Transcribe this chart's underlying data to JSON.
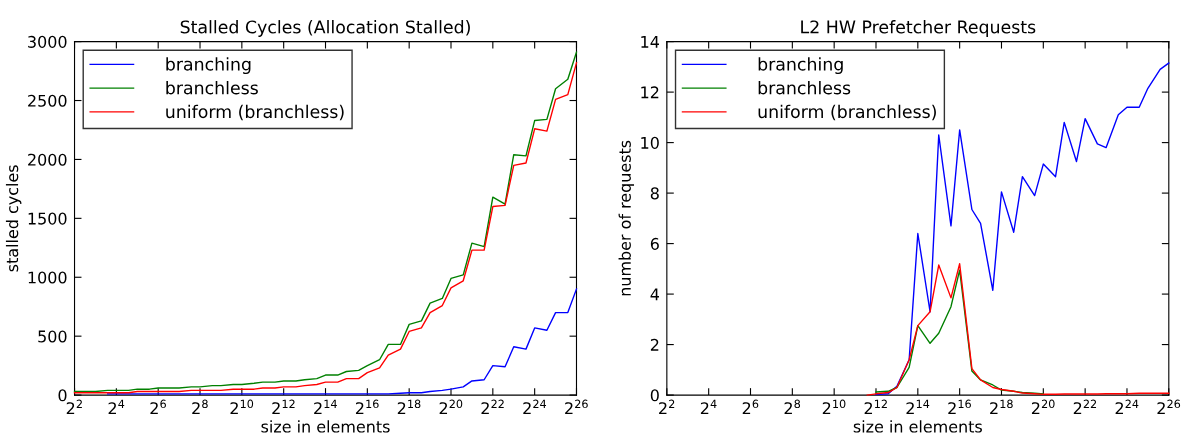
{
  "chart_data": [
    {
      "type": "line",
      "title": "Stalled Cycles (Allocation Stalled)",
      "xlabel": "size in elements",
      "ylabel": "stalled cycles",
      "log": "x",
      "grid": false,
      "legend": "top left",
      "x": [
        4,
        6,
        8,
        12,
        16,
        24,
        32,
        48,
        64,
        96,
        128,
        192,
        256,
        384,
        512,
        768,
        1024,
        1536,
        2048,
        3072,
        4096,
        6144,
        8192,
        12288,
        16384,
        24576,
        32768,
        49152,
        65536,
        98304,
        131072,
        196608,
        262144,
        393216,
        524288,
        786432,
        1048576,
        1572864,
        2097152,
        3145728,
        4194304,
        6291456,
        8388608,
        12582912,
        16777216,
        25165824,
        33554432,
        50331648,
        67108864
      ],
      "xlim": [
        4,
        67108864
      ],
      "xticks": [
        {
          "value": 4,
          "label": "2$^{2}$"
        },
        {
          "value": 16,
          "label": "2$^{4}$"
        },
        {
          "value": 64,
          "label": "2$^{6}$"
        },
        {
          "value": 256,
          "label": "2$^{8}$"
        },
        {
          "value": 1024,
          "label": "2$^{10}$"
        },
        {
          "value": 4096,
          "label": "2$^{12}$"
        },
        {
          "value": 16384,
          "label": "2$^{14}$"
        },
        {
          "value": 65536,
          "label": "2$^{16}$"
        },
        {
          "value": 262144,
          "label": "2$^{18}$"
        },
        {
          "value": 1048576,
          "label": "2$^{20}$"
        },
        {
          "value": 4194304,
          "label": "2$^{22}$"
        },
        {
          "value": 16777216,
          "label": "2$^{24}$"
        },
        {
          "value": 67108864,
          "label": "2$^{26}$"
        }
      ],
      "ylim": [
        0,
        3000
      ],
      "yticks": [
        0,
        500,
        1000,
        1500,
        2000,
        2500,
        3000
      ],
      "series": [
        {
          "name": "branching",
          "color": "#0000ff",
          "values": [
            null,
            null,
            null,
            10,
            10,
            10,
            10,
            10,
            10,
            10,
            10,
            10,
            10,
            10,
            10,
            10,
            10,
            10,
            10,
            10,
            10,
            10,
            10,
            10,
            10,
            10,
            10,
            10,
            10,
            10,
            10,
            15,
            20,
            20,
            30,
            40,
            50,
            70,
            120,
            130,
            250,
            240,
            410,
            390,
            570,
            550,
            700,
            700,
            900
          ]
        },
        {
          "name": "branchless",
          "color": "#008000",
          "values": [
            30,
            30,
            30,
            40,
            40,
            40,
            50,
            50,
            60,
            60,
            60,
            70,
            70,
            80,
            80,
            90,
            90,
            100,
            110,
            110,
            120,
            120,
            130,
            140,
            170,
            170,
            200,
            210,
            250,
            300,
            430,
            430,
            600,
            630,
            780,
            820,
            990,
            1020,
            1290,
            1260,
            1680,
            1620,
            2040,
            2030,
            2330,
            2340,
            2600,
            2680,
            2910
          ]
        },
        {
          "name": "uniform (branchless)",
          "color": "#ff0000",
          "values": [
            20,
            20,
            20,
            20,
            20,
            20,
            30,
            30,
            30,
            30,
            30,
            40,
            40,
            40,
            40,
            50,
            50,
            50,
            60,
            60,
            70,
            70,
            80,
            90,
            110,
            110,
            140,
            140,
            190,
            230,
            340,
            390,
            540,
            570,
            700,
            760,
            910,
            970,
            1230,
            1230,
            1600,
            1610,
            1950,
            1970,
            2260,
            2240,
            2510,
            2550,
            2820
          ]
        }
      ]
    },
    {
      "type": "line",
      "title": "L2 HW Prefetcher Requests",
      "xlabel": "size in elements",
      "ylabel": "number of requests",
      "log": "x",
      "grid": false,
      "legend": "top left",
      "x": [
        3072,
        4096,
        6144,
        8192,
        12288,
        16384,
        24576,
        32768,
        49152,
        65536,
        98304,
        131072,
        196608,
        262144,
        393216,
        524288,
        786432,
        1048576,
        1572864,
        2097152,
        3145728,
        4194304,
        6291456,
        8388608,
        12582912,
        16777216,
        25165824,
        33554432,
        50331648,
        67108864
      ],
      "xlim": [
        4,
        67108864
      ],
      "xticks": [
        {
          "value": 4,
          "label": "2$^{2}$"
        },
        {
          "value": 16,
          "label": "2$^{4}$"
        },
        {
          "value": 64,
          "label": "2$^{6}$"
        },
        {
          "value": 256,
          "label": "2$^{8}$"
        },
        {
          "value": 1024,
          "label": "2$^{10}$"
        },
        {
          "value": 4096,
          "label": "2$^{12}$"
        },
        {
          "value": 16384,
          "label": "2$^{14}$"
        },
        {
          "value": 65536,
          "label": "2$^{16}$"
        },
        {
          "value": 262144,
          "label": "2$^{18}$"
        },
        {
          "value": 1048576,
          "label": "2$^{20}$"
        },
        {
          "value": 4194304,
          "label": "2$^{22}$"
        },
        {
          "value": 16777216,
          "label": "2$^{24}$"
        },
        {
          "value": 67108864,
          "label": "2$^{26}$"
        }
      ],
      "ylim": [
        0,
        14
      ],
      "yticks": [
        0,
        2,
        4,
        6,
        8,
        10,
        12,
        14
      ],
      "series": [
        {
          "name": "branching",
          "color": "#0000ff",
          "values": [
            null,
            0.02,
            0.05,
            0.35,
            1.4,
            6.4,
            3.3,
            10.3,
            6.7,
            10.5,
            7.35,
            6.8,
            4.15,
            8.05,
            6.45,
            8.65,
            7.9,
            9.15,
            8.65,
            10.8,
            9.25,
            10.95,
            9.95,
            9.8,
            11.1,
            11.4,
            11.4,
            12.15,
            12.9,
            13.15
          ]
        },
        {
          "name": "branchless",
          "color": "#008000",
          "values": [
            null,
            0.12,
            0.15,
            0.3,
            1.1,
            2.75,
            2.05,
            2.45,
            3.5,
            4.95,
            0.95,
            0.6,
            0.4,
            0.2,
            0.15,
            0.1,
            0.07,
            0.05,
            null,
            null,
            null,
            null,
            null,
            null,
            null,
            null,
            null,
            null,
            null,
            null
          ]
        },
        {
          "name": "uniform (branchless)",
          "color": "#ff0000",
          "values": [
            0,
            0.05,
            0.1,
            0.3,
            1.4,
            2.75,
            3.3,
            5.15,
            3.85,
            5.2,
            1.05,
            0.6,
            0.3,
            0.22,
            0.15,
            0.08,
            0.05,
            0.03,
            0.03,
            0.04,
            0.04,
            0.04,
            0.04,
            0.05,
            0.05,
            0.05,
            0.07,
            0.07,
            0.07,
            0.07
          ]
        }
      ]
    }
  ]
}
